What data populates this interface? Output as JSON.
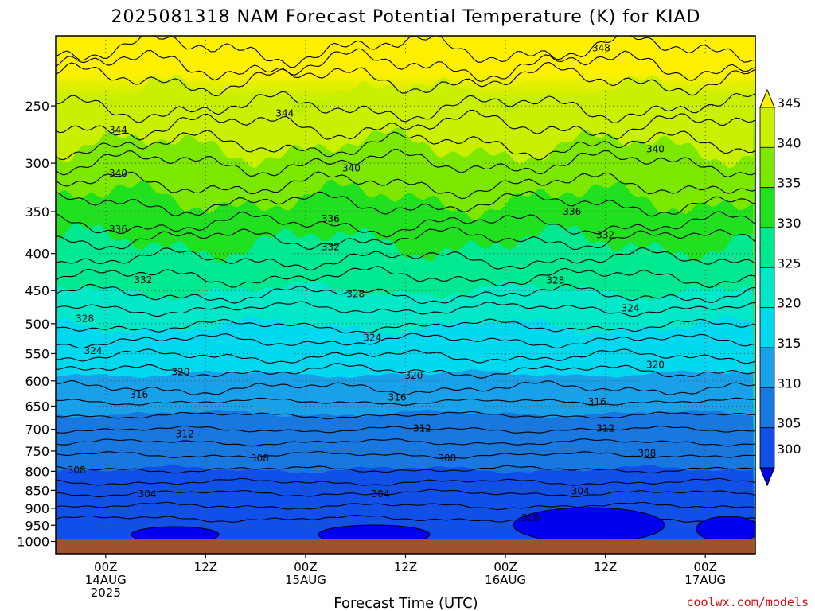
{
  "chart_data": {
    "type": "contour",
    "title": "2025081318 NAM Forecast Potential Temperature (K) for KIAD",
    "xlabel": "Forecast Time (UTC)",
    "ylabel": "",
    "credit": "coolwx.com/models",
    "y_axis": {
      "scale": "log-pressure",
      "reversed": true,
      "range": [
        200,
        1040
      ],
      "ticks": [
        "250",
        "300",
        "350",
        "400",
        "450",
        "500",
        "550",
        "600",
        "650",
        "700",
        "750",
        "800",
        "850",
        "900",
        "950",
        "1000"
      ]
    },
    "x_axis": {
      "range_hours": [
        -6,
        78
      ],
      "ticks": [
        {
          "hour": 0,
          "lines": [
            "00Z",
            "14AUG",
            "2025"
          ]
        },
        {
          "hour": 12,
          "lines": [
            "12Z"
          ]
        },
        {
          "hour": 24,
          "lines": [
            "00Z",
            "15AUG"
          ]
        },
        {
          "hour": 36,
          "lines": [
            "12Z"
          ]
        },
        {
          "hour": 48,
          "lines": [
            "00Z",
            "16AUG"
          ]
        },
        {
          "hour": 60,
          "lines": [
            "12Z"
          ]
        },
        {
          "hour": 72,
          "lines": [
            "00Z",
            "17AUG"
          ]
        }
      ]
    },
    "grid": true,
    "colorbar": {
      "placement": "right",
      "labels": [
        "300",
        "305",
        "310",
        "315",
        "320",
        "325",
        "330",
        "335",
        "340",
        "345"
      ],
      "colors": [
        "#0000f0",
        "#1050e8",
        "#1878e0",
        "#18a0e8",
        "#00d8f0",
        "#00e8c8",
        "#00e890",
        "#20e020",
        "#7ce800",
        "#c8f000",
        "#fff000"
      ]
    },
    "ground_color": "#a0522d",
    "contour_labels": [
      {
        "text": "348",
        "hour": 59.5,
        "p": 208
      },
      {
        "text": "344",
        "hour": 1.5,
        "p": 270
      },
      {
        "text": "344",
        "hour": 21.5,
        "p": 256
      },
      {
        "text": "340",
        "hour": 1.5,
        "p": 310
      },
      {
        "text": "340",
        "hour": 29.5,
        "p": 305
      },
      {
        "text": "340",
        "hour": 66,
        "p": 287
      },
      {
        "text": "336",
        "hour": 1.5,
        "p": 370
      },
      {
        "text": "336",
        "hour": 27,
        "p": 358
      },
      {
        "text": "336",
        "hour": 56,
        "p": 350
      },
      {
        "text": "332",
        "hour": 4.5,
        "p": 435
      },
      {
        "text": "332",
        "hour": 27,
        "p": 392
      },
      {
        "text": "332",
        "hour": 60,
        "p": 377
      },
      {
        "text": "328",
        "hour": -2.5,
        "p": 492
      },
      {
        "text": "328",
        "hour": 30,
        "p": 455
      },
      {
        "text": "328",
        "hour": 54,
        "p": 436
      },
      {
        "text": "324",
        "hour": -1.5,
        "p": 545
      },
      {
        "text": "324",
        "hour": 32,
        "p": 523
      },
      {
        "text": "324",
        "hour": 63,
        "p": 476
      },
      {
        "text": "320",
        "hour": 9,
        "p": 583
      },
      {
        "text": "320",
        "hour": 37,
        "p": 590
      },
      {
        "text": "320",
        "hour": 66,
        "p": 570
      },
      {
        "text": "316",
        "hour": 4,
        "p": 627
      },
      {
        "text": "316",
        "hour": 35,
        "p": 632
      },
      {
        "text": "316",
        "hour": 59,
        "p": 641
      },
      {
        "text": "312",
        "hour": 9.5,
        "p": 710
      },
      {
        "text": "312",
        "hour": 38,
        "p": 698
      },
      {
        "text": "312",
        "hour": 60,
        "p": 698
      },
      {
        "text": "308",
        "hour": -3.5,
        "p": 797
      },
      {
        "text": "308",
        "hour": 18.5,
        "p": 767
      },
      {
        "text": "308",
        "hour": 41,
        "p": 767
      },
      {
        "text": "308",
        "hour": 65,
        "p": 756
      },
      {
        "text": "304",
        "hour": 5,
        "p": 860
      },
      {
        "text": "304",
        "hour": 33,
        "p": 860
      },
      {
        "text": "304",
        "hour": 57,
        "p": 853
      },
      {
        "text": "300",
        "hour": 51,
        "p": 928
      }
    ]
  }
}
